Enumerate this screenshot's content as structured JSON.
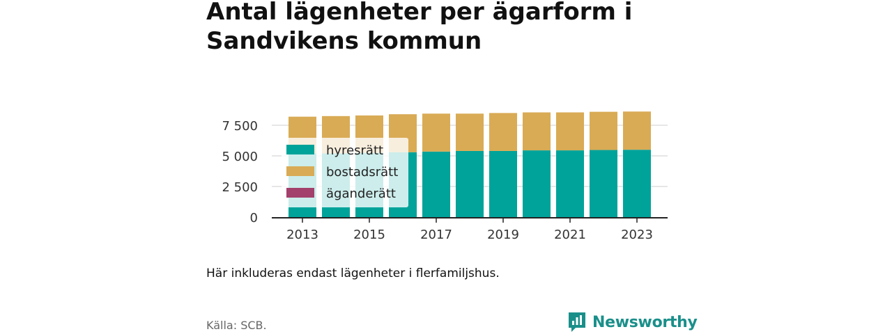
{
  "title": "Antal lägenheter per ägarform i Sandvikens kommun",
  "note": "Här inkluderas endast lägenheter i flerfamiljshus.",
  "source": "Källa: SCB.",
  "brand": "Newsworthy",
  "colors": {
    "hyresratt": "#00a39a",
    "bostadsratt": "#d9ab55",
    "aganderatt": "#a3406b",
    "grid": "#dddddd",
    "axis": "#222222",
    "brand": "#1a8f8a"
  },
  "chart_data": {
    "type": "bar",
    "stacked": true,
    "categories": [
      "2013",
      "2014",
      "2015",
      "2016",
      "2017",
      "2018",
      "2019",
      "2020",
      "2021",
      "2022",
      "2023"
    ],
    "series": [
      {
        "name": "hyresrätt",
        "color": "#00a39a",
        "values": [
          5200,
          5200,
          5250,
          5300,
          5350,
          5400,
          5400,
          5450,
          5450,
          5480,
          5500
        ]
      },
      {
        "name": "bostadsrätt",
        "color": "#d9ab55",
        "values": [
          3000,
          3050,
          3050,
          3100,
          3100,
          3050,
          3100,
          3100,
          3100,
          3120,
          3120
        ]
      },
      {
        "name": "äganderätt",
        "color": "#a3406b",
        "values": [
          0,
          0,
          0,
          0,
          0,
          0,
          0,
          0,
          0,
          0,
          0
        ]
      }
    ],
    "yticks": [
      0,
      2500,
      5000,
      7500
    ],
    "ytick_labels": [
      "0",
      "2 500",
      "5 000",
      "7 500"
    ],
    "xtick_labels": [
      "2013",
      "2015",
      "2017",
      "2019",
      "2021",
      "2023"
    ],
    "ylim": [
      0,
      10000
    ],
    "grid": true,
    "legend_position": "left-inside"
  }
}
